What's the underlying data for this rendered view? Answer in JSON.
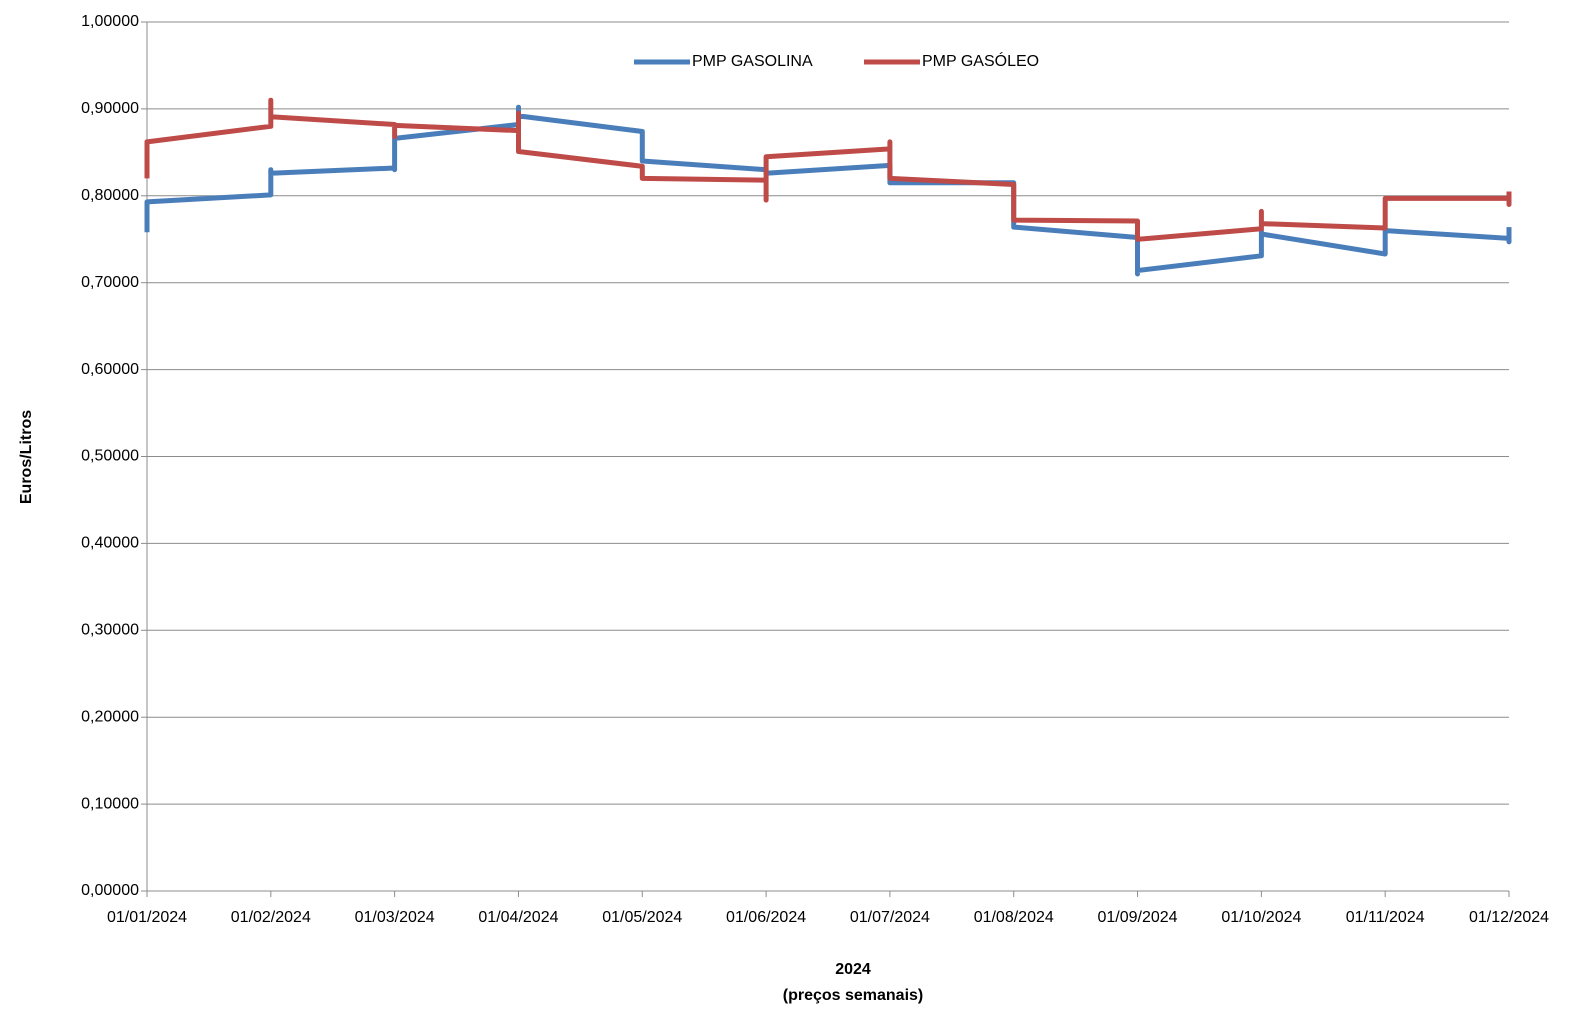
{
  "chart_data": {
    "type": "line",
    "y_label": "Euros/Litros",
    "x_label": "2024",
    "x_sublabel": "(preços semanais)",
    "categories": [
      "01/01/2024",
      "01/02/2024",
      "01/03/2024",
      "01/04/2024",
      "01/05/2024",
      "01/06/2024",
      "01/07/2024",
      "01/08/2024",
      "01/09/2024",
      "01/10/2024",
      "01/11/2024",
      "01/12/2024"
    ],
    "ylim": [
      0,
      1
    ],
    "yticks": [
      {
        "value": 0,
        "label": "0,00000"
      },
      {
        "value": 0.1,
        "label": "0,10000"
      },
      {
        "value": 0.2,
        "label": "0,20000"
      },
      {
        "value": 0.3,
        "label": "0,30000"
      },
      {
        "value": 0.4,
        "label": "0,40000"
      },
      {
        "value": 0.5,
        "label": "0,50000"
      },
      {
        "value": 0.6,
        "label": "0,60000"
      },
      {
        "value": 0.7,
        "label": "0,70000"
      },
      {
        "value": 0.8,
        "label": "0,80000"
      },
      {
        "value": 0.9,
        "label": "0,90000"
      },
      {
        "value": 1,
        "label": "1,00000"
      }
    ],
    "grid": true,
    "legend": "top",
    "series": [
      {
        "name": "PMP GASOLINA",
        "color": "#4a7ebb",
        "x": [
          "01/01/2024",
          "01/01/2024",
          "01/02/2024",
          "01/02/2024",
          "01/02/2024",
          "01/03/2024",
          "01/03/2024",
          "01/03/2024",
          "01/04/2024",
          "01/04/2024",
          "01/04/2024",
          "01/05/2024",
          "01/05/2024",
          "01/06/2024",
          "01/06/2024",
          "01/07/2024",
          "01/07/2024",
          "01/08/2024",
          "01/08/2024",
          "01/09/2024",
          "01/09/2024",
          "01/09/2024",
          "01/10/2024",
          "01/10/2024",
          "01/10/2024",
          "01/11/2024",
          "01/11/2024",
          "01/12/2024",
          "01/12/2024",
          "01/12/2024"
        ],
        "values": [
          0.758,
          0.793,
          0.801,
          0.83,
          0.826,
          0.832,
          0.83,
          0.866,
          0.882,
          0.902,
          0.892,
          0.874,
          0.84,
          0.83,
          0.826,
          0.835,
          0.815,
          0.815,
          0.764,
          0.752,
          0.71,
          0.714,
          0.731,
          0.76,
          0.756,
          0.733,
          0.76,
          0.751,
          0.747,
          0.764
        ]
      },
      {
        "name": "PMP GASÓLEO",
        "color": "#be4b48",
        "x": [
          "01/01/2024",
          "01/01/2024",
          "01/02/2024",
          "01/02/2024",
          "01/02/2024",
          "01/03/2024",
          "01/03/2024",
          "01/03/2024",
          "01/04/2024",
          "01/04/2024",
          "01/04/2024",
          "01/05/2024",
          "01/05/2024",
          "01/06/2024",
          "01/06/2024",
          "01/06/2024",
          "01/07/2024",
          "01/07/2024",
          "01/07/2024",
          "01/08/2024",
          "01/08/2024",
          "01/09/2024",
          "01/09/2024",
          "01/10/2024",
          "01/10/2024",
          "01/10/2024",
          "01/11/2024",
          "01/11/2024",
          "01/12/2024",
          "01/12/2024",
          "01/12/2024"
        ],
        "values": [
          0.82,
          0.862,
          0.88,
          0.91,
          0.891,
          0.882,
          0.868,
          0.881,
          0.875,
          0.895,
          0.851,
          0.834,
          0.82,
          0.818,
          0.795,
          0.845,
          0.854,
          0.862,
          0.82,
          0.813,
          0.772,
          0.771,
          0.75,
          0.762,
          0.782,
          0.768,
          0.763,
          0.797,
          0.797,
          0.79,
          0.805
        ]
      }
    ]
  }
}
